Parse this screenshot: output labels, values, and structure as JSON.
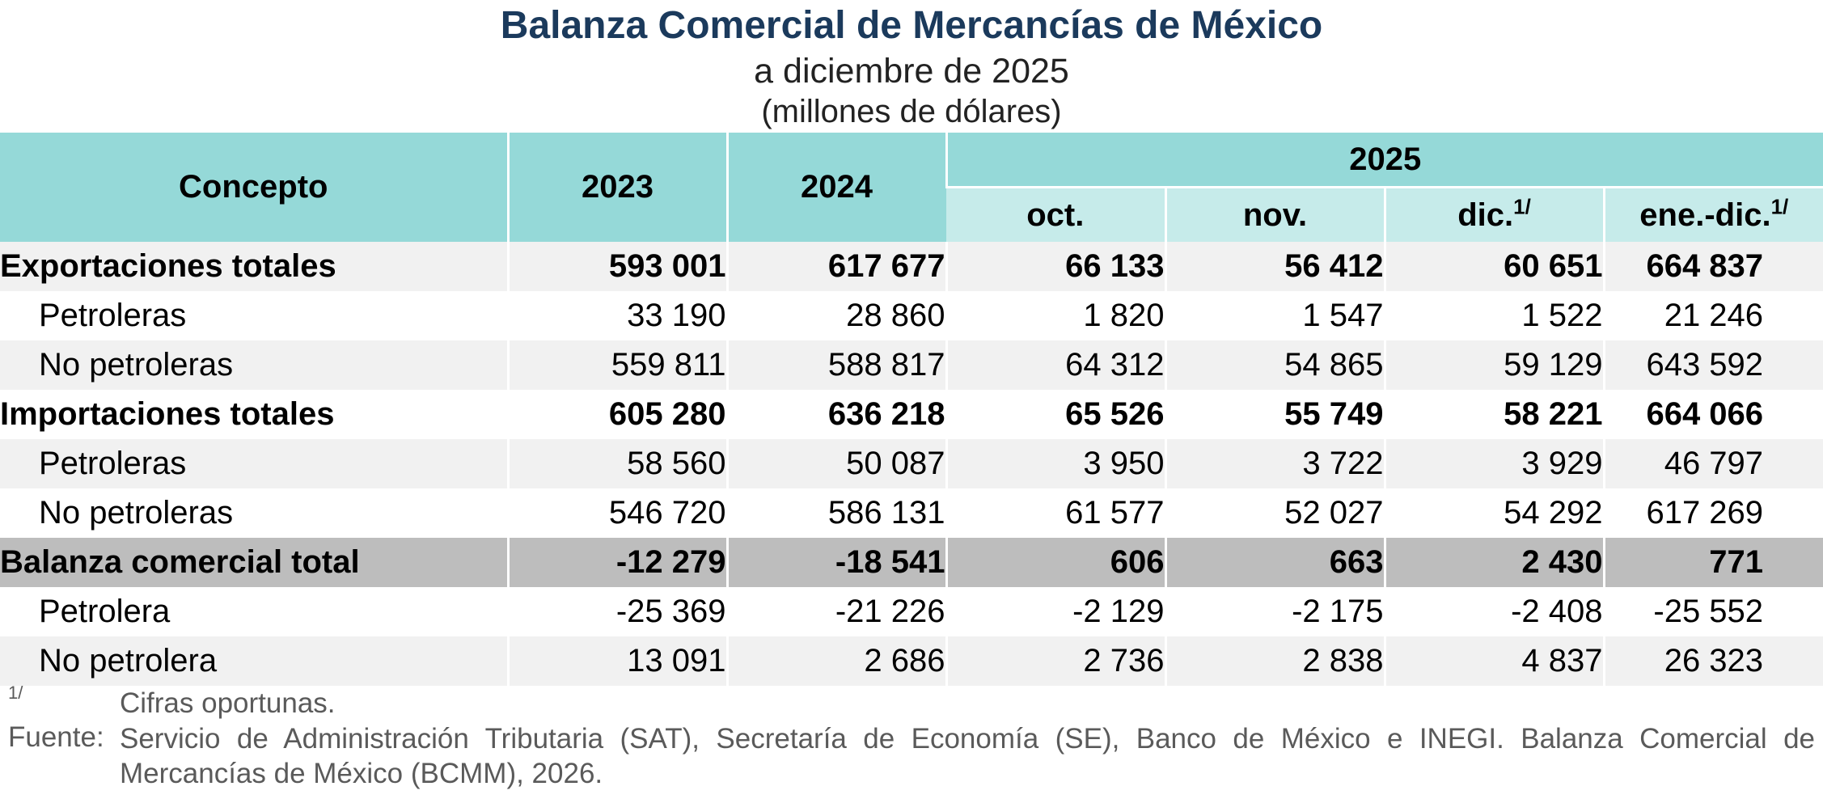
{
  "header": {
    "title": "Balanza Comercial de Mercancías de México",
    "subtitle": "a diciembre de 2025",
    "units": "(millones de dólares)"
  },
  "table": {
    "headers": {
      "concepto": "Concepto",
      "y2023": "2023",
      "y2024": "2024",
      "y2025": "2025",
      "oct": "oct.",
      "nov": "nov.",
      "dic": "dic.",
      "enedic": "ene.-dic.",
      "footnote_mark": "1/"
    },
    "rows": [
      {
        "label": "Exportaciones totales",
        "values": [
          "593 001",
          "617 677",
          "66 133",
          "56 412",
          "60 651",
          "664 837"
        ]
      },
      {
        "label": "Petroleras",
        "values": [
          "33 190",
          "28 860",
          "1 820",
          "1 547",
          "1 522",
          "21 246"
        ]
      },
      {
        "label": "No petroleras",
        "values": [
          "559 811",
          "588 817",
          "64 312",
          "54 865",
          "59 129",
          "643 592"
        ]
      },
      {
        "label": "Importaciones totales",
        "values": [
          "605 280",
          "636 218",
          "65 526",
          "55 749",
          "58 221",
          "664 066"
        ]
      },
      {
        "label": "Petroleras",
        "values": [
          "58 560",
          "50 087",
          "3 950",
          "3 722",
          "3 929",
          "46 797"
        ]
      },
      {
        "label": "No petroleras",
        "values": [
          "546 720",
          "586 131",
          "61 577",
          "52 027",
          "54 292",
          "617 269"
        ]
      },
      {
        "label": "Balanza comercial total",
        "values": [
          "-12 279",
          "-18 541",
          "606",
          "663",
          "2 430",
          "771"
        ]
      },
      {
        "label": "Petrolera",
        "values": [
          "-25 369",
          "-21 226",
          "-2 129",
          "-2 175",
          "-2 408",
          "-25 552"
        ]
      },
      {
        "label": "No petrolera",
        "values": [
          "13 091",
          "2 686",
          "2 736",
          "2 838",
          "4 837",
          "26 323"
        ]
      }
    ]
  },
  "notes": {
    "footnote_mark": "1/",
    "footnote": "Cifras oportunas.",
    "source_label": "Fuente:",
    "source_text": "Servicio de Administración Tributaria (SAT), Secretaría de Economía (SE), Banco de México e INEGI. Balanza Comercial de Mercancías de México (BCMM), 2026."
  }
}
